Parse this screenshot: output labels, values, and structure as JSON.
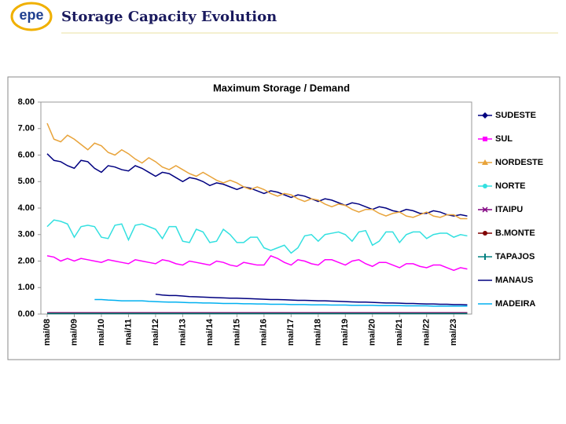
{
  "slide": {
    "logo": "epe",
    "title": "Storage Capacity Evolution"
  },
  "chart_data": {
    "type": "line",
    "title": "Maximum Storage / Demand",
    "categories": [
      "mai/08",
      null,
      null,
      null,
      "mai/09",
      null,
      null,
      null,
      "mai/10",
      null,
      null,
      null,
      "mai/11",
      null,
      null,
      null,
      "mai/12",
      null,
      null,
      null,
      "mai/13",
      null,
      null,
      null,
      "mai/14",
      null,
      null,
      null,
      "mai/15",
      null,
      null,
      null,
      "mai/16",
      null,
      null,
      null,
      "mai/17",
      null,
      null,
      null,
      "mai/18",
      null,
      null,
      null,
      "mai/19",
      null,
      null,
      null,
      "mai/20",
      null,
      null,
      null,
      "mai/21",
      null,
      null,
      null,
      "mai/22",
      null,
      null,
      null,
      "mai/23",
      null,
      null
    ],
    "ylim": [
      0,
      8
    ],
    "yticks": [
      {
        "value": 0,
        "label": "0.00"
      },
      {
        "value": 1,
        "label": "1.00"
      },
      {
        "value": 2,
        "label": "2.00"
      },
      {
        "value": 3,
        "label": "3.00"
      },
      {
        "value": 4,
        "label": "4.00"
      },
      {
        "value": 5,
        "label": "5.00"
      },
      {
        "value": 6,
        "label": "6.00"
      },
      {
        "value": 7,
        "label": "7.00"
      },
      {
        "value": 8,
        "label": "8.00"
      }
    ],
    "legend": "right",
    "series": [
      {
        "name": "SUDESTE",
        "color": "#000080",
        "marker": "diamond",
        "values": [
          6.05,
          5.8,
          5.75,
          5.6,
          5.5,
          5.8,
          5.75,
          5.5,
          5.35,
          5.6,
          5.55,
          5.45,
          5.4,
          5.6,
          5.5,
          5.35,
          5.2,
          5.35,
          5.3,
          5.15,
          5.0,
          5.15,
          5.1,
          5.0,
          4.85,
          4.95,
          4.9,
          4.8,
          4.7,
          4.8,
          4.75,
          4.65,
          4.55,
          4.65,
          4.6,
          4.5,
          4.4,
          4.5,
          4.45,
          4.35,
          4.25,
          4.35,
          4.3,
          4.2,
          4.1,
          4.2,
          4.15,
          4.05,
          3.95,
          4.05,
          4.0,
          3.9,
          3.85,
          3.95,
          3.9,
          3.8,
          3.8,
          3.9,
          3.85,
          3.75,
          3.7,
          3.75,
          3.7
        ]
      },
      {
        "name": "SUL",
        "color": "#ff00ff",
        "marker": "square",
        "values": [
          2.2,
          2.15,
          2.0,
          2.1,
          2.0,
          2.1,
          2.05,
          2.0,
          1.95,
          2.05,
          2.0,
          1.95,
          1.9,
          2.05,
          2.0,
          1.95,
          1.9,
          2.05,
          2.0,
          1.9,
          1.85,
          2.0,
          1.95,
          1.9,
          1.85,
          2.0,
          1.95,
          1.85,
          1.8,
          1.95,
          1.9,
          1.85,
          1.85,
          2.2,
          2.1,
          1.95,
          1.85,
          2.05,
          2.0,
          1.9,
          1.85,
          2.05,
          2.05,
          1.95,
          1.85,
          2.0,
          2.05,
          1.9,
          1.8,
          1.95,
          1.95,
          1.85,
          1.75,
          1.9,
          1.9,
          1.8,
          1.75,
          1.85,
          1.85,
          1.75,
          1.65,
          1.75,
          1.7
        ]
      },
      {
        "name": "NORDESTE",
        "color": "#e8a33a",
        "marker": "triangle",
        "values": [
          7.2,
          6.6,
          6.5,
          6.75,
          6.6,
          6.4,
          6.2,
          6.45,
          6.35,
          6.1,
          6.0,
          6.2,
          6.05,
          5.85,
          5.7,
          5.9,
          5.75,
          5.55,
          5.45,
          5.6,
          5.45,
          5.3,
          5.2,
          5.35,
          5.2,
          5.05,
          4.95,
          5.05,
          4.95,
          4.8,
          4.7,
          4.8,
          4.7,
          4.55,
          4.45,
          4.55,
          4.5,
          4.35,
          4.25,
          4.35,
          4.3,
          4.15,
          4.05,
          4.15,
          4.1,
          3.95,
          3.85,
          3.95,
          3.95,
          3.8,
          3.7,
          3.8,
          3.85,
          3.7,
          3.65,
          3.75,
          3.85,
          3.7,
          3.65,
          3.75,
          3.75,
          3.6,
          3.6
        ]
      },
      {
        "name": "NORTE",
        "color": "#33e0e0",
        "marker": "circle",
        "values": [
          3.3,
          3.55,
          3.5,
          3.4,
          2.9,
          3.3,
          3.35,
          3.3,
          2.9,
          2.85,
          3.35,
          3.4,
          2.8,
          3.35,
          3.4,
          3.3,
          3.2,
          2.85,
          3.3,
          3.3,
          2.75,
          2.7,
          3.2,
          3.1,
          2.7,
          2.75,
          3.2,
          3.0,
          2.7,
          2.7,
          2.9,
          2.9,
          2.5,
          2.4,
          2.5,
          2.6,
          2.3,
          2.5,
          2.95,
          3.0,
          2.75,
          3.0,
          3.05,
          3.1,
          3.0,
          2.75,
          3.1,
          3.15,
          2.6,
          2.75,
          3.1,
          3.1,
          2.7,
          3.0,
          3.1,
          3.1,
          2.85,
          3.0,
          3.05,
          3.05,
          2.9,
          3.0,
          2.95
        ]
      },
      {
        "name": "ITAIPU",
        "color": "#800080",
        "marker": "x",
        "values": [
          0.05,
          0.05,
          0.05,
          0.05,
          0.05,
          0.05,
          0.05,
          0.05,
          0.05,
          0.05,
          0.05,
          0.05,
          0.05,
          0.05,
          0.05,
          0.05,
          0.05,
          0.05,
          0.05,
          0.05,
          0.05,
          0.05,
          0.05,
          0.05,
          0.05,
          0.05,
          0.05,
          0.05,
          0.05,
          0.05,
          0.05,
          0.05,
          0.05,
          0.05,
          0.05,
          0.05,
          0.05,
          0.05,
          0.05,
          0.05,
          0.05,
          0.05,
          0.05,
          0.05,
          0.05,
          0.05,
          0.05,
          0.05,
          0.05,
          0.05,
          0.05,
          0.05,
          0.05,
          0.05,
          0.05,
          0.05,
          0.05,
          0.05,
          0.05,
          0.05,
          0.05,
          0.05,
          0.05
        ]
      },
      {
        "name": "B.MONTE",
        "color": "#800000",
        "marker": "circle",
        "values": [
          0.03,
          0.03,
          0.03,
          0.03,
          0.03,
          0.03,
          0.03,
          0.03,
          0.03,
          0.03,
          0.03,
          0.03,
          0.03,
          0.03,
          0.03,
          0.03,
          0.03,
          0.03,
          0.03,
          0.03,
          0.03,
          0.03,
          0.03,
          0.03,
          0.03,
          0.03,
          0.03,
          0.03,
          0.03,
          0.03,
          0.03,
          0.03,
          0.03,
          0.03,
          0.03,
          0.03,
          0.03,
          0.03,
          0.03,
          0.03,
          0.03,
          0.03,
          0.03,
          0.03,
          0.03,
          0.03,
          0.03,
          0.03,
          0.03,
          0.03,
          0.03,
          0.03,
          0.03,
          0.03,
          0.03,
          0.03,
          0.03,
          0.03,
          0.03,
          0.03,
          0.03,
          0.03,
          0.03
        ]
      },
      {
        "name": "TAPAJOS",
        "color": "#008080",
        "marker": "bar",
        "values": [
          0.02,
          0.02,
          0.02,
          0.02,
          0.02,
          0.02,
          0.02,
          0.02,
          0.02,
          0.02,
          0.02,
          0.02,
          0.02,
          0.02,
          0.02,
          0.02,
          0.02,
          0.02,
          0.02,
          0.02,
          0.02,
          0.02,
          0.02,
          0.02,
          0.02,
          0.02,
          0.02,
          0.02,
          0.02,
          0.02,
          0.02,
          0.02,
          0.02,
          0.02,
          0.02,
          0.02,
          0.02,
          0.02,
          0.02,
          0.02,
          0.02,
          0.02,
          0.02,
          0.02,
          0.02,
          0.02,
          0.02,
          0.02,
          0.02,
          0.02,
          0.02,
          0.02,
          0.02,
          0.02,
          0.02,
          0.02,
          0.02,
          0.02,
          0.02,
          0.02,
          0.02,
          0.02,
          0.02
        ]
      },
      {
        "name": "MANAUS",
        "color": "#000080",
        "marker": "line",
        "values": [
          null,
          null,
          null,
          null,
          null,
          null,
          null,
          null,
          null,
          null,
          null,
          null,
          null,
          null,
          null,
          null,
          0.75,
          0.72,
          0.7,
          0.7,
          0.68,
          0.66,
          0.65,
          0.64,
          0.63,
          0.62,
          0.61,
          0.6,
          0.6,
          0.59,
          0.58,
          0.57,
          0.56,
          0.55,
          0.55,
          0.54,
          0.53,
          0.52,
          0.52,
          0.51,
          0.5,
          0.5,
          0.49,
          0.48,
          0.47,
          0.46,
          0.45,
          0.45,
          0.44,
          0.43,
          0.42,
          0.42,
          0.41,
          0.4,
          0.4,
          0.39,
          0.38,
          0.38,
          0.37,
          0.37,
          0.36,
          0.36,
          0.35
        ]
      },
      {
        "name": "MADEIRA",
        "color": "#00b0f0",
        "marker": "line",
        "values": [
          null,
          null,
          null,
          null,
          null,
          null,
          null,
          0.55,
          0.55,
          0.53,
          0.52,
          0.5,
          0.5,
          0.5,
          0.5,
          0.48,
          0.47,
          0.46,
          0.45,
          0.45,
          0.44,
          0.43,
          0.43,
          0.42,
          0.42,
          0.41,
          0.4,
          0.4,
          0.4,
          0.39,
          0.39,
          0.38,
          0.38,
          0.37,
          0.37,
          0.37,
          0.36,
          0.36,
          0.36,
          0.35,
          0.35,
          0.35,
          0.34,
          0.34,
          0.34,
          0.33,
          0.33,
          0.33,
          0.33,
          0.32,
          0.32,
          0.32,
          0.32,
          0.31,
          0.31,
          0.31,
          0.31,
          0.3,
          0.3,
          0.3,
          0.3,
          0.3,
          0.3
        ]
      }
    ]
  }
}
